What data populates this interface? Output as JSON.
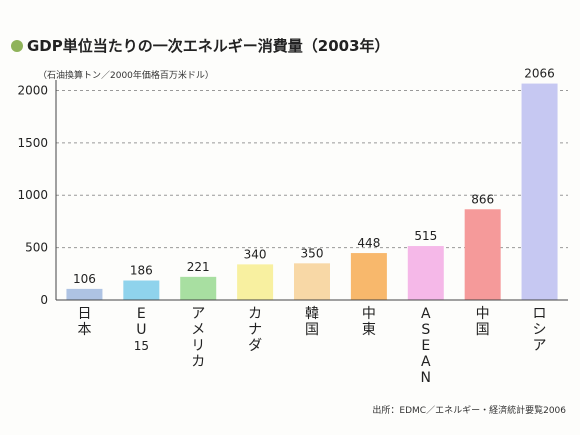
{
  "chart_data": {
    "type": "bar",
    "title": "GDP単位当たりの一次エネルギー消費量（2003年）",
    "unit_label": "（石油換算トン／2000年価格百万米ドル）",
    "categories": [
      "日本",
      "EU15",
      "アメリカ",
      "カナダ",
      "韓国",
      "中東",
      "ASEAN",
      "中国",
      "ロシア"
    ],
    "values": [
      106,
      186,
      221,
      340,
      350,
      448,
      515,
      866,
      2066
    ],
    "value_labels": [
      "106",
      "186",
      "221",
      "340",
      "350",
      "448",
      "515",
      "866",
      "2066"
    ],
    "bar_colors": [
      "#aec3e3",
      "#8fd3ec",
      "#a8dfa1",
      "#f8f0a0",
      "#f8d8a6",
      "#f8b86c",
      "#f5b8e8",
      "#f59a9a",
      "#c6c8f2"
    ],
    "yticks": [
      "0",
      "500",
      "1000",
      "1500",
      "2000"
    ],
    "ytick_values": [
      0,
      500,
      1000,
      1500,
      2000
    ],
    "ylim": [
      0,
      2100
    ],
    "grid": "dashed horizontal",
    "bullet_color": "#8fb35a",
    "source": "出所：EDMC／エネルギー・経済統計要覧2006"
  }
}
